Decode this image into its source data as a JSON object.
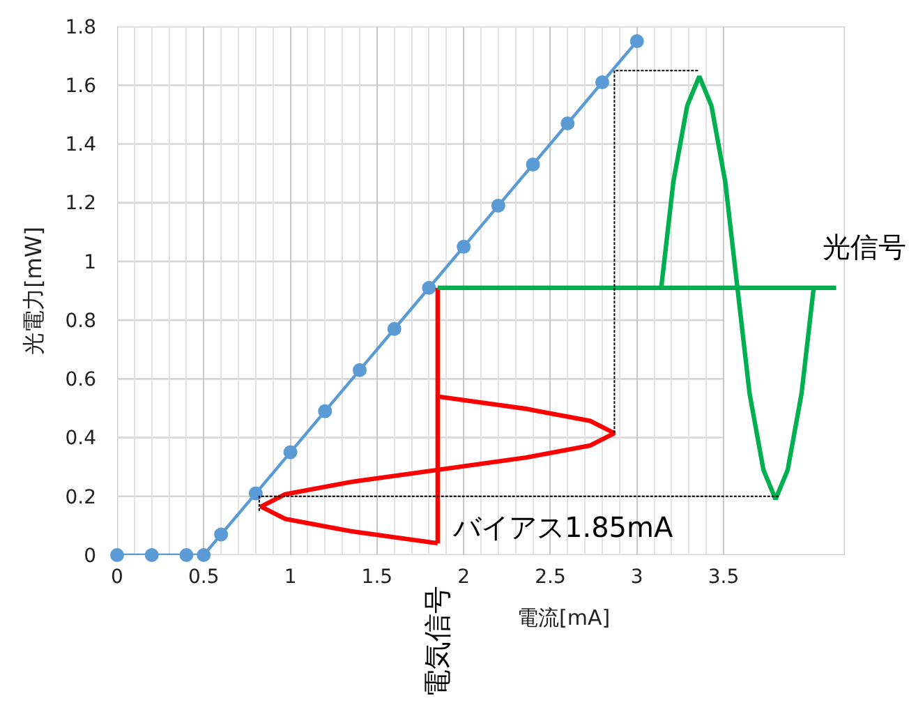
{
  "chart_data": {
    "type": "line",
    "xlabel": "電流[mA]",
    "ylabel": "光電力[mW]",
    "xlim": [
      0,
      4.2
    ],
    "xticks": [
      0,
      0.5,
      1,
      1.5,
      2,
      2.5,
      3,
      3.5
    ],
    "ylim": [
      0,
      1.8
    ],
    "yticks": [
      0,
      0.2,
      0.4,
      0.6,
      0.8,
      1,
      1.2,
      1.4,
      1.6,
      1.8
    ],
    "grid": true,
    "legend": false,
    "series": [
      {
        "color": "#5b9bd5",
        "marker": "circle",
        "line_style": "solid",
        "x": [
          0,
          0.2,
          0.4,
          0.5,
          0.6,
          0.8,
          1.0,
          1.2,
          1.4,
          1.6,
          1.8,
          2.0,
          2.2,
          2.4,
          2.6,
          2.8,
          3.0
        ],
        "values": [
          0,
          0,
          0,
          0,
          0.07,
          0.21,
          0.35,
          0.49,
          0.63,
          0.77,
          0.91,
          1.05,
          1.19,
          1.33,
          1.47,
          1.61,
          1.75
        ]
      },
      {
        "color": "#ff0000",
        "marker": "none",
        "line_style": "solid",
        "x": [
          1.85,
          1.85
        ],
        "values": [
          0.91,
          0.04
        ]
      },
      {
        "color": "#ff0000",
        "marker": "none",
        "line_style": "solid",
        "x": [
          1.85,
          2.36,
          2.73,
          2.87,
          2.73,
          2.36,
          1.85,
          1.34,
          0.97,
          0.83,
          0.97,
          1.34,
          1.85
        ],
        "values": [
          0.54,
          0.498,
          0.457,
          0.415,
          0.373,
          0.332,
          0.29,
          0.248,
          0.207,
          0.165,
          0.123,
          0.082,
          0.04
        ]
      },
      {
        "color": "#00b050",
        "marker": "none",
        "line_style": "solid",
        "x": [
          1.85,
          4.15
        ],
        "values": [
          0.91,
          0.91
        ]
      },
      {
        "color": "#00b050",
        "marker": "none",
        "line_style": "solid",
        "x": [
          3.14,
          3.21,
          3.29,
          3.36,
          3.43,
          3.51,
          3.58,
          3.65,
          3.73,
          3.8,
          3.87,
          3.95,
          4.02
        ],
        "values": [
          0.91,
          1.27,
          1.53,
          1.63,
          1.53,
          1.27,
          0.91,
          0.55,
          0.29,
          0.19,
          0.29,
          0.55,
          0.91
        ]
      },
      {
        "color": "#000000",
        "marker": "none",
        "line_style": "dotted",
        "x": [
          2.87,
          2.87,
          3.36
        ],
        "values": [
          0.415,
          1.65,
          1.65
        ]
      },
      {
        "color": "#000000",
        "marker": "none",
        "line_style": "dotted",
        "x": [
          0.82,
          0.82,
          3.82
        ],
        "values": [
          0.15,
          0.2,
          0.2
        ]
      }
    ],
    "annotations": [
      "光信号",
      "バイアス1.85mA",
      "電気信号"
    ]
  }
}
